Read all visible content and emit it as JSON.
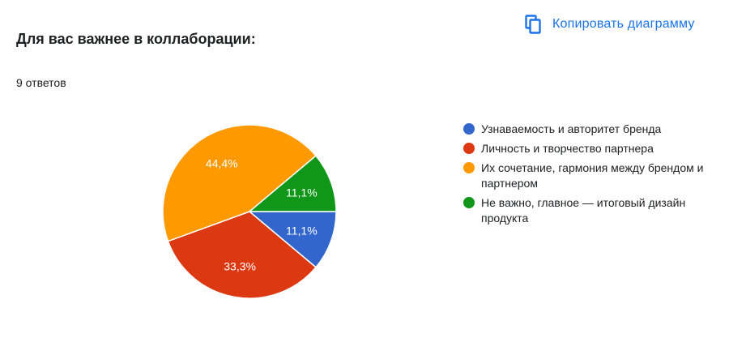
{
  "header": {
    "copy_label": "Копировать диаграмму",
    "copy_icon": "copy-icon"
  },
  "question": {
    "title": "Для вас важнее в коллаборации:",
    "responses": "9 ответов"
  },
  "chart_data": {
    "type": "pie",
    "categories": [
      "Узнаваемость и авторитет бренда",
      "Личность и творчество партнера",
      "Их сочетание, гармония между брендом и партнером",
      "Не важно, главное — итоговый дизайн продукта"
    ],
    "values": [
      11.1,
      33.3,
      44.4,
      11.1
    ],
    "labels": [
      "11,1%",
      "33,3%",
      "44,4%",
      "11,1%"
    ],
    "colors": [
      "#3366cc",
      "#dc3912",
      "#ff9900",
      "#109618"
    ],
    "legend_position": "right"
  }
}
